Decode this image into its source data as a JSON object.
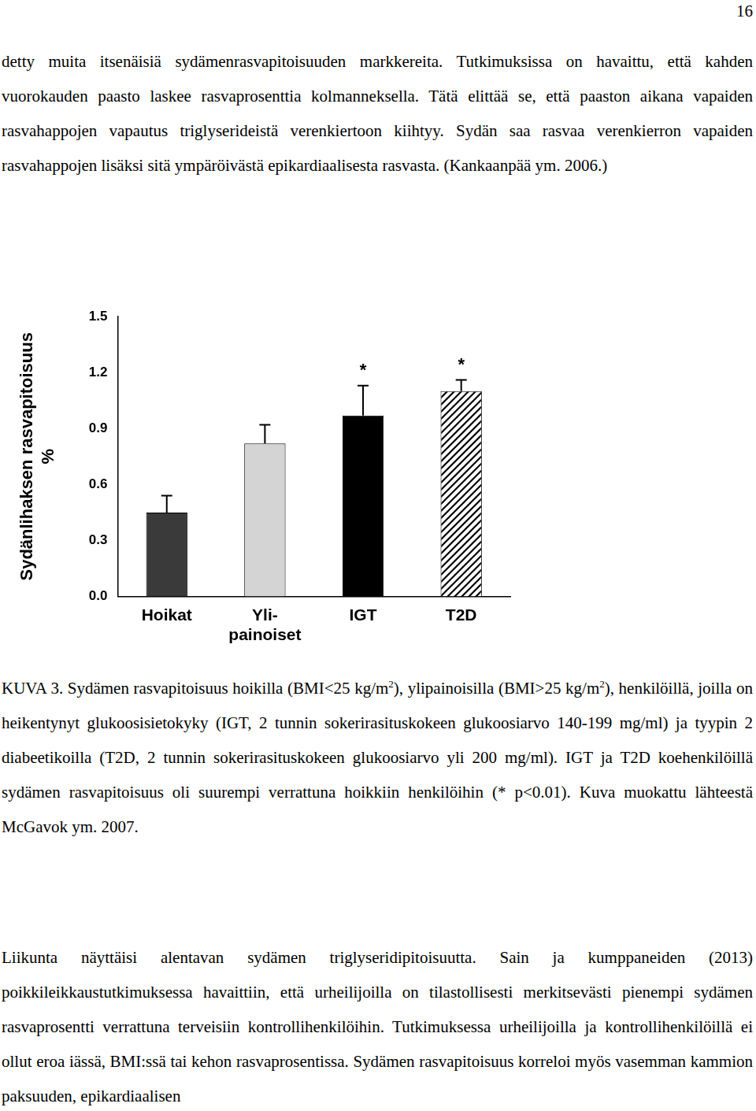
{
  "page_number": "16",
  "paragraphs_before": [
    "detty muita itsenäisiä sydämenrasvapitoisuuden markkereita. Tutkimuksissa on havaittu, että kahden vuorokauden paasto laskee rasvaprosenttia kolmanneksella. Tätä elittää se, että paaston aikana vapaiden rasvahappojen vapautus triglyserideistä verenkiertoon kiihtyy. Sydän saa rasvaa verenkierron vapaiden rasvahappojen lisäksi sitä ympäröivästä epikardiaalisesta rasvasta. (Kankaanpää ym. 2006.)"
  ],
  "chart_data": {
    "type": "bar",
    "y_label": [
      "Sydänlihaksen rasvapitoisuus",
      "%"
    ],
    "categories": [
      "Hoikat",
      [
        "Yli-",
        "painoiset"
      ],
      "IGT",
      "T2D"
    ],
    "values": [
      0.45,
      0.82,
      0.97,
      1.1
    ],
    "errors": [
      0.09,
      0.1,
      0.16,
      0.06
    ],
    "significance": [
      null,
      null,
      "*",
      "*"
    ],
    "colors": [
      "#3a3a3a",
      "#d4d4d4",
      "#000000",
      "#000000"
    ],
    "ylim": [
      0,
      1.5
    ],
    "yticks": [
      {
        "value": 0,
        "label": "0.0"
      },
      0.3,
      0.6,
      0.9,
      1.2,
      1.5
    ],
    "grid": false
  },
  "caption": [
    {
      "text": "KUVA 3. Sydämen rasvapitoisuus hoikilla (BMI<25 kg/m"
    },
    {
      "sup": "2"
    },
    {
      "text": "), ylipainoisilla (BMI>25 kg/m"
    },
    {
      "sup": "2"
    },
    {
      "text": "), henkilöillä, joilla on heikentynyt glukoosisietokyky (IGT, 2 tunnin sokerirasituskokeen glukoosiarvo 140-199 mg/ml) ja tyypin 2 diabeetikoilla (T2D, 2 tunnin sokerirasituskokeen glukoosiarvo yli 200 mg/ml). IGT ja T2D koehenkilöillä sydämen rasvapitoisuus oli suurempi verrattuna hoikkiin henkilöihin (* p<0.01). Kuva muokattu lähteestä McGavok ym. 2007."
    }
  ],
  "paragraphs_after": [
    "Liikunta näyttäisi alentavan sydämen triglyseridipitoisuutta. Sain ja kumppaneiden (2013) poikkileikkaustutkimuksessa havaittiin, että urheilijoilla on tilastollisesti merkitsevästi pienempi sydämen rasvaprosentti verrattuna terveisiin kontrollihenkilöihin. Tutkimuksessa urheilijoilla ja kontrollihenkilöillä ei ollut eroa iässä, BMI:ssä tai kehon rasvaprosentissa. Sydämen rasvapitoisuus korreloi myös vasemman kammion paksuuden, epikardiaalisen"
  ]
}
